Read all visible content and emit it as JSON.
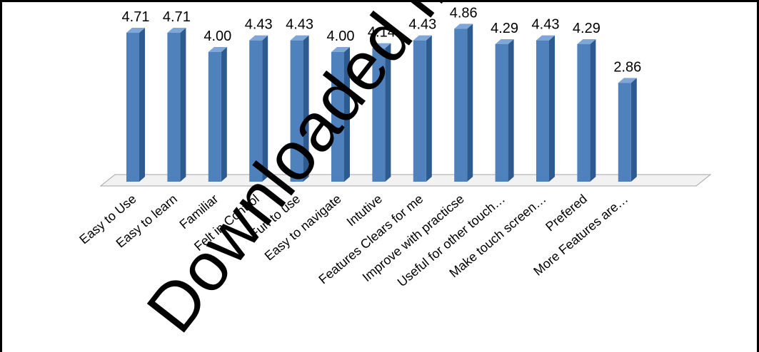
{
  "chart_data": {
    "type": "bar",
    "style": "3d-column",
    "categories": [
      "Easy to Use",
      "Easy to learn",
      "Familiar",
      "Felt in Control",
      "Fun to use",
      "Easy to navigate",
      "Intutive",
      "Features Clears for me",
      "Improve with practicse",
      "Useful for other touch…",
      "Make touch screen…",
      "Prefered",
      "More Features are…"
    ],
    "values": [
      4.71,
      4.71,
      4.0,
      4.43,
      4.43,
      4.0,
      4.14,
      4.43,
      4.86,
      4.29,
      4.43,
      4.29,
      2.86
    ],
    "value_labels": [
      "4.71",
      "4.71",
      "4.00",
      "4.43",
      "4.43",
      "4.00",
      "4.14",
      "4.43",
      "4.86",
      "4.29",
      "4.43",
      "4.29",
      "2.86"
    ],
    "ylim": [
      0,
      5
    ],
    "grid": false,
    "legend": "none",
    "colors": {
      "bar_front": "#4F81BD",
      "bar_side": "#2D5A8F",
      "bar_top": "#7FA6D8",
      "floor": "#F2F2F2"
    }
  },
  "watermark": "Downloaded from www.e"
}
